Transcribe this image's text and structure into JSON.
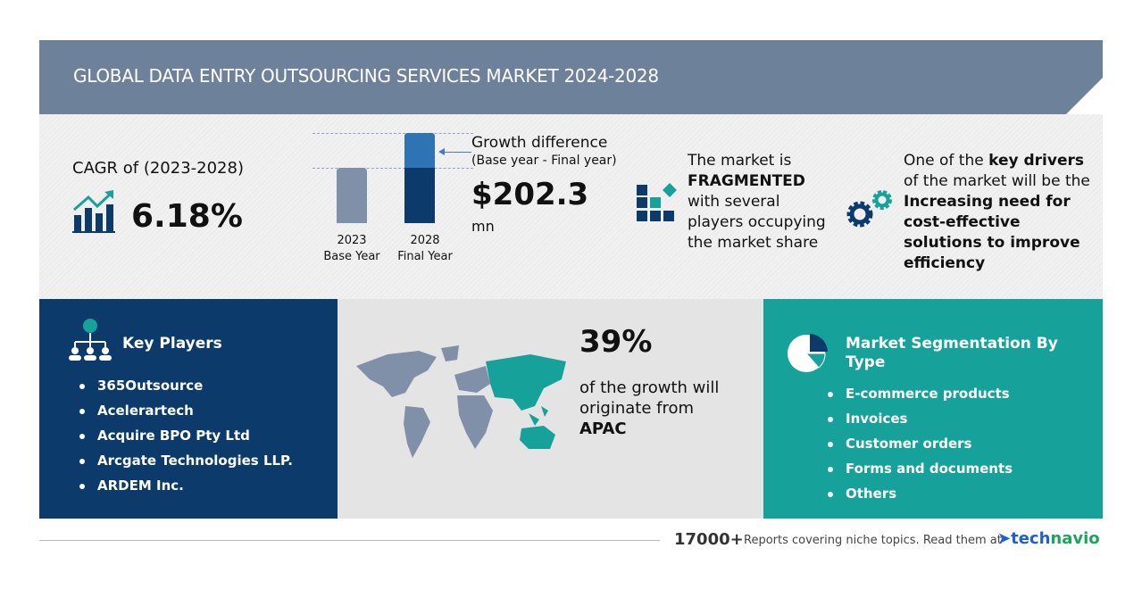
{
  "header": {
    "title": "GLOBAL DATA ENTRY OUTSOURCING SERVICES MARKET 2024-2028"
  },
  "cagr": {
    "label": "CAGR of (2023-2028)",
    "value": "6.18%",
    "icon": "growth-chart-icon"
  },
  "growth": {
    "bars": [
      {
        "year": "2023",
        "label": "Base Year",
        "color": "#7f90a8"
      },
      {
        "year": "2028",
        "label": "Final Year",
        "color": "#0b3a6b",
        "increment_color": "#2e74b5"
      }
    ],
    "title": "Growth difference",
    "subtitle": "(Base year - Final year)",
    "value": "$202.3",
    "unit": "mn"
  },
  "fragmented": {
    "line1": "The market is",
    "bold": "FRAGMENTED",
    "rest": [
      "with several",
      "players occupying",
      "the market share"
    ],
    "icon": "fragmented-blocks-icon"
  },
  "drivers": {
    "pre": "One of the ",
    "bold1": "key drivers",
    "mid": "of the market will be the",
    "bold2": [
      "Increasing need for",
      "cost-effective",
      "solutions to improve",
      "efficiency"
    ],
    "icon": "gears-icon"
  },
  "key_players": {
    "title": "Key Players",
    "icon": "people-network-icon",
    "items": [
      "365Outsource",
      "Acelerartech",
      "Acquire BPO Pty Ltd",
      "Arcgate Technologies LLP.",
      "ARDEM Inc."
    ]
  },
  "region": {
    "percent": "39%",
    "text1": "of the growth will",
    "text2": "originate from",
    "region": "APAC",
    "icon": "world-map-icon"
  },
  "segmentation": {
    "title1": "Market Segmentation By",
    "title2": "Type",
    "icon": "pie-chart-icon",
    "items": [
      "E-commerce products",
      "Invoices",
      "Customer orders",
      "Forms and documents",
      "Others"
    ]
  },
  "footer": {
    "count": "17000+",
    "text": "Reports covering niche topics. Read them at",
    "brand1": "tech",
    "brand2": "navio"
  },
  "colors": {
    "navy": "#0b3a6b",
    "teal": "#16a19a",
    "header": "#6d819b"
  }
}
